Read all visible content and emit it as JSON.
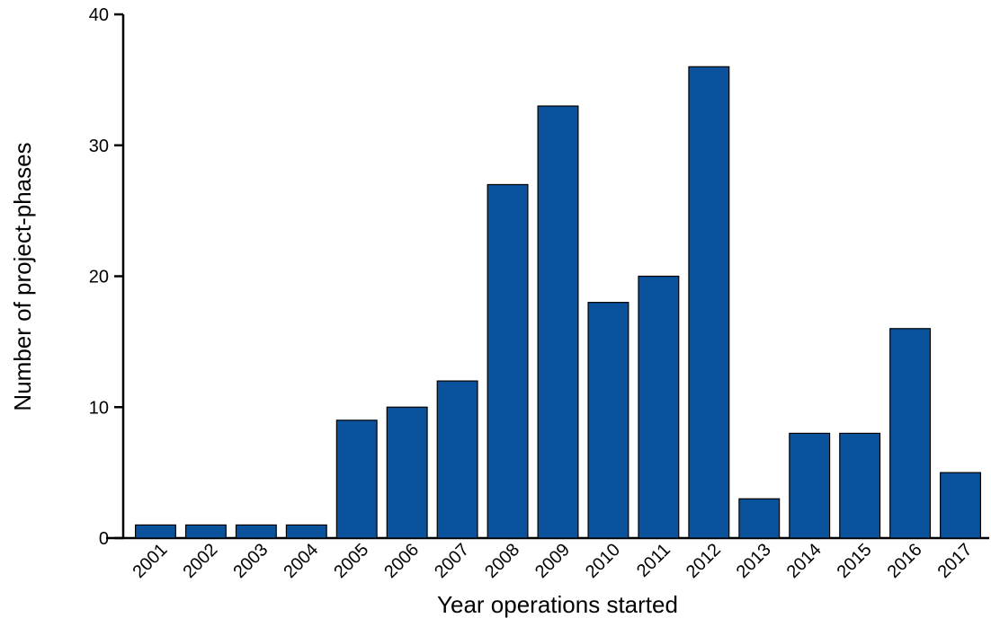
{
  "chart_data": {
    "type": "bar",
    "x_label": "Year operations started",
    "y_label": "Number of project-phases",
    "categories": [
      "2001",
      "2002",
      "2003",
      "2004",
      "2005",
      "2006",
      "2007",
      "2008",
      "2009",
      "2010",
      "2011",
      "2012",
      "2013",
      "2014",
      "2015",
      "2016",
      "2017"
    ],
    "values": [
      1,
      1,
      1,
      1,
      9,
      10,
      12,
      27,
      33,
      18,
      20,
      36,
      3,
      8,
      8,
      16,
      5
    ],
    "color": "#0b529c",
    "ylim": [
      0,
      40
    ],
    "yticks": [
      0,
      10,
      20,
      30,
      40
    ],
    "grid": false
  }
}
